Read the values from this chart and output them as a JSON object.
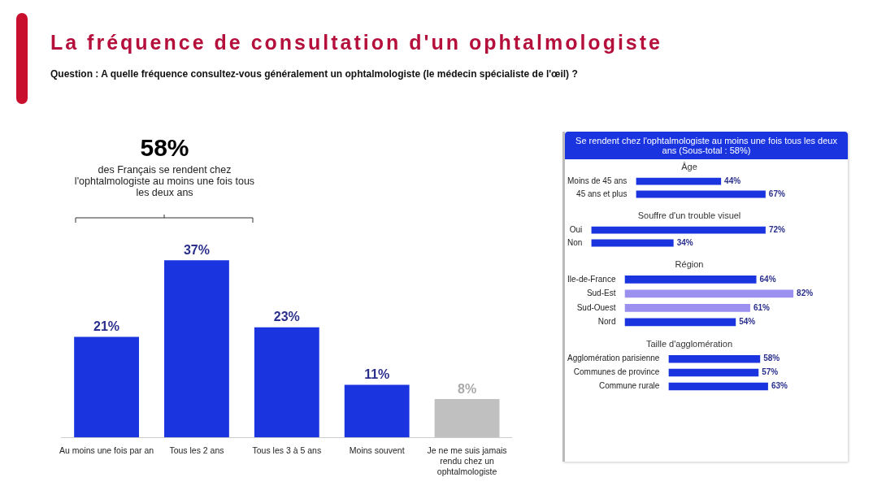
{
  "chart_data": [
    {
      "type": "bar",
      "title": "La fréquence de consultation d'un ophtalmologiste",
      "subtitle": "Question : A quelle fréquence consultez-vous généralement un ophtalmologiste (le médecin spécialiste de l'œil) ?",
      "annotations": [
        "58%",
        "des Français se rendent chez l'ophtalmologiste au moins une fois tous les deux ans"
      ],
      "categories": [
        "Au moins une fois par an",
        "Tous les 2 ans",
        "Tous les 3 à 5 ans",
        "Moins souvent",
        "Je ne me suis jamais rendu chez un ophtalmologiste"
      ],
      "values": [
        21,
        37,
        23,
        11,
        8
      ],
      "colors": [
        "#1a35e0",
        "#1a35e0",
        "#1a35e0",
        "#1a35e0",
        "#c0c0c0"
      ],
      "value_labels": [
        "21%",
        "37%",
        "23%",
        "11%",
        "8%"
      ]
    },
    {
      "type": "other",
      "title": "Se rendent chez l'ophtalmologiste au moins une fois tous les deux ans (Sous-total : 58%)"
    },
    {
      "type": "bar",
      "orientation": "horizontal",
      "title": "Âge",
      "categories": [
        "Moins de 45 ans",
        "45 ans et plus"
      ],
      "values": [
        44,
        67
      ],
      "colors": [
        "#1a35e0",
        "#1a35e0"
      ],
      "value_labels": [
        "44%",
        "67%"
      ]
    },
    {
      "type": "bar",
      "orientation": "horizontal",
      "title": "Souffre d'un trouble visuel",
      "categories": [
        "Oui",
        "Non"
      ],
      "values": [
        72,
        34
      ],
      "colors": [
        "#1a35e0",
        "#1a35e0"
      ],
      "value_labels": [
        "72%",
        "34%"
      ]
    },
    {
      "type": "bar",
      "orientation": "horizontal",
      "title": "Région",
      "categories": [
        "Ile-de-France",
        "Sud-Est",
        "Sud-Ouest",
        "Nord"
      ],
      "values": [
        64,
        82,
        61,
        54
      ],
      "colors": [
        "#1a35e0",
        "#9b8ff0",
        "#9b8ff0",
        "#1a35e0"
      ],
      "value_labels": [
        "64%",
        "82%",
        "61%",
        "54%"
      ]
    },
    {
      "type": "bar",
      "orientation": "horizontal",
      "title": "Taille d'agglomération",
      "categories": [
        "Agglomération parisienne",
        "Communes de province",
        "Commune rurale"
      ],
      "values": [
        58,
        57,
        63
      ],
      "colors": [
        "#1a35e0",
        "#1a35e0",
        "#1a35e0"
      ],
      "value_labels": [
        "58%",
        "57%",
        "63%"
      ]
    }
  ]
}
